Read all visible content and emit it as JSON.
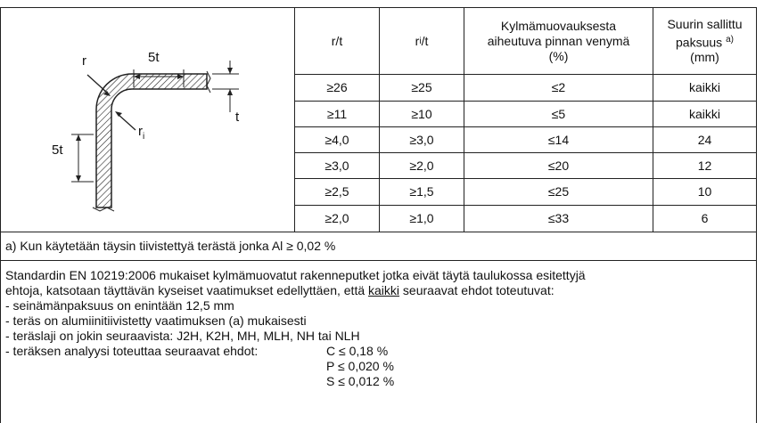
{
  "header": {
    "rt": "r/t",
    "ri_main": "r",
    "ri_sub": "i",
    "ri_rest": "/t",
    "strain": [
      "Kylmämuovauksesta",
      "aiheutuva pinnan venymä",
      "(%)"
    ],
    "thick": [
      "Suurin sallittu",
      "paksuus",
      "(mm)"
    ],
    "thick_note": "a)"
  },
  "diagram": {
    "top_dim": "5t",
    "r": "r",
    "t": "t",
    "ri_main": "r",
    "ri_sub": "i",
    "side_dim": "5t"
  },
  "table": {
    "rows": [
      [
        "≥26",
        "≥25",
        "≤2",
        "kaikki"
      ],
      [
        "≥11",
        "≥10",
        "≤5",
        "kaikki"
      ],
      [
        "≥4,0",
        "≥3,0",
        "≤14",
        "24"
      ],
      [
        "≥3,0",
        "≥2,0",
        "≤20",
        "12"
      ],
      [
        "≥2,5",
        "≥1,5",
        "≤25",
        "10"
      ],
      [
        "≥2,0",
        "≥1,0",
        "≤33",
        "6"
      ]
    ]
  },
  "footnote": "a)  Kun käytetään täysin tiivistettyä terästä jonka Al ≥ 0,02 %",
  "note": {
    "line1": "Standardin EN 10219:2006 mukaiset kylmämuovatut rakenneputket jotka eivät täytä taulukossa esitettyjä",
    "line2a": "ehtoja, katsotaan täyttävän kyseiset vaatimukset edellyttäen, että ",
    "line2b": "kaikki",
    "line2c": " seuraavat ehdot toteutuvat:",
    "items": [
      "- seinämänpaksuus on enintään 12,5 mm",
      "- teräs on alumiinitiivistetty vaatimuksen (a) mukaisesti",
      "- teräslaji on jokin seuraavista: J2H, K2H, MH, MLH, NH tai NLH",
      "- teräksen analyysi toteuttaa seuraavat ehdot:"
    ],
    "conditions": [
      "C ≤ 0,18 %",
      "P ≤ 0,020 %",
      "S ≤ 0,012 %"
    ]
  }
}
